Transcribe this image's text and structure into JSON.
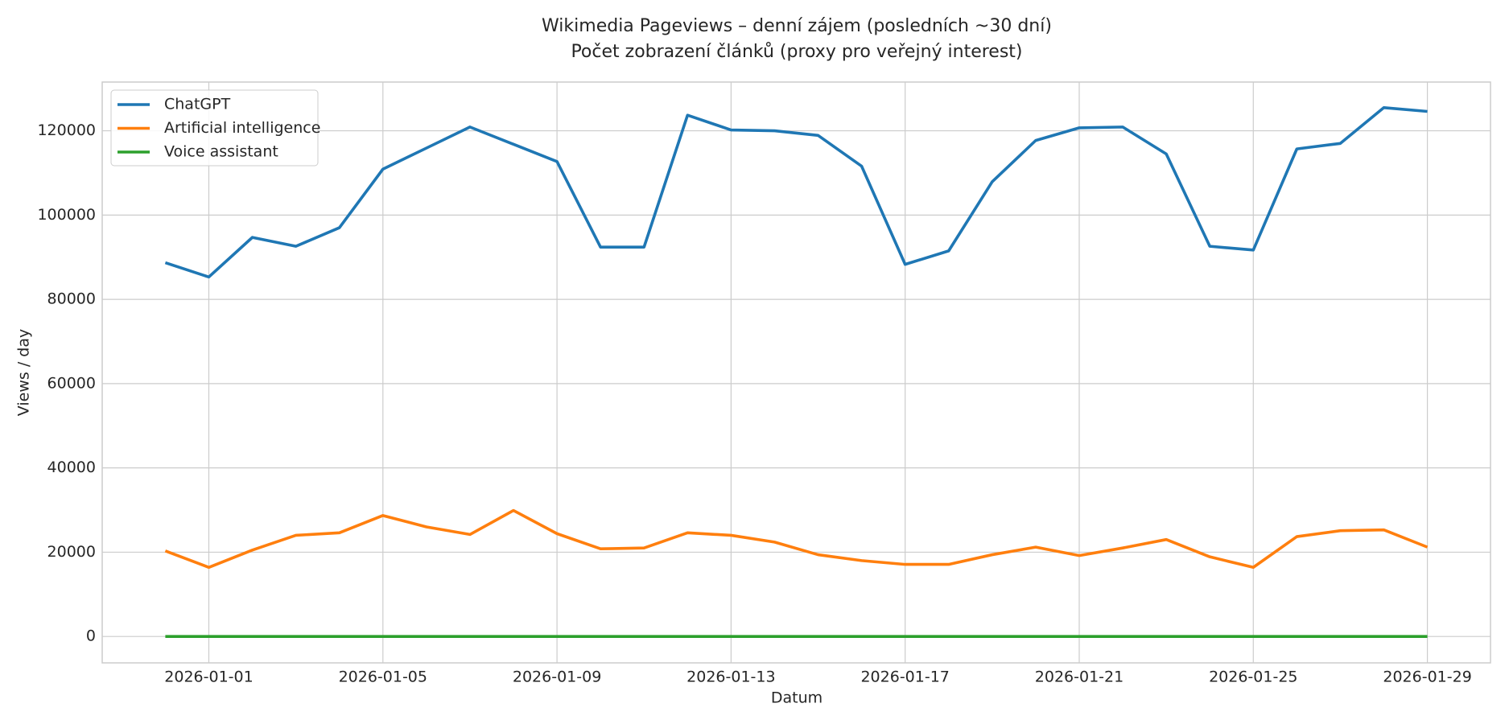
{
  "chart_data": {
    "type": "line",
    "title": "Wikimedia Pageviews – denní zájem (posledních ~30 dní)",
    "subtitle": "Počet zobrazení článků (proxy pro veřejný interest)",
    "x_label": "Datum",
    "y_label": "Views / day",
    "x": [
      "2025-12-31",
      "2026-01-01",
      "2026-01-02",
      "2026-01-03",
      "2026-01-04",
      "2026-01-05",
      "2026-01-06",
      "2026-01-07",
      "2026-01-08",
      "2026-01-09",
      "2026-01-10",
      "2026-01-11",
      "2026-01-12",
      "2026-01-13",
      "2026-01-14",
      "2026-01-15",
      "2026-01-16",
      "2026-01-17",
      "2026-01-18",
      "2026-01-19",
      "2026-01-20",
      "2026-01-21",
      "2026-01-22",
      "2026-01-23",
      "2026-01-24",
      "2026-01-25",
      "2026-01-26",
      "2026-01-27",
      "2026-01-28",
      "2026-01-29"
    ],
    "series": [
      {
        "name": "ChatGPT",
        "color": "#1f77b4",
        "values": [
          88700,
          85300,
          94700,
          92600,
          97000,
          110900,
          115900,
          120900,
          116800,
          112700,
          92400,
          92400,
          123700,
          120200,
          120000,
          118900,
          111600,
          88300,
          91500,
          107900,
          117700,
          120700,
          120900,
          114500,
          92600,
          91700,
          115700,
          117000,
          125500,
          124600
        ]
      },
      {
        "name": "Artificial intelligence",
        "color": "#ff7f0e",
        "values": [
          20300,
          16400,
          20500,
          24000,
          24600,
          28700,
          26000,
          24200,
          29900,
          24400,
          20800,
          21000,
          24600,
          24000,
          22400,
          19400,
          18000,
          17100,
          17100,
          19400,
          21200,
          19200,
          21000,
          23000,
          18900,
          16400,
          23700,
          25100,
          25300,
          21200
        ]
      },
      {
        "name": "Voice assistant",
        "color": "#2ca02c",
        "values": [
          0,
          0,
          0,
          0,
          0,
          0,
          0,
          0,
          0,
          0,
          0,
          0,
          0,
          0,
          0,
          0,
          0,
          0,
          0,
          0,
          0,
          0,
          0,
          0,
          0,
          0,
          0,
          0,
          0,
          0
        ]
      }
    ],
    "xlim": [
      "2025-12-29T13:12:00",
      "2026-01-30T10:48:00"
    ],
    "xticks": [
      "2026-01-01",
      "2026-01-05",
      "2026-01-09",
      "2026-01-13",
      "2026-01-17",
      "2026-01-21",
      "2026-01-25",
      "2026-01-29"
    ],
    "ylim": [
      -6265,
      131565
    ],
    "yticks": [
      0,
      20000,
      40000,
      60000,
      80000,
      100000,
      120000
    ],
    "grid": true,
    "legend": "upper left"
  }
}
